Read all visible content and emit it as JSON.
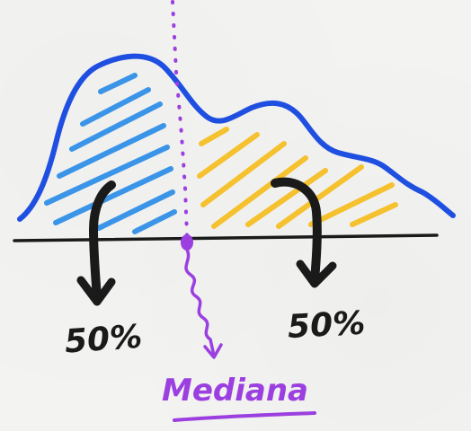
{
  "labels": {
    "left_percent": "50%",
    "right_percent": "50%",
    "median": "Mediana"
  },
  "colors": {
    "curve": "#1f4fe0",
    "left_hatch": "#3a94e8",
    "right_hatch": "#f5c12e",
    "median_line": "#9b3fe0",
    "axis": "#1a1a1a",
    "arrows": "#1a1a1a",
    "median_text": "#9b3fe0"
  }
}
